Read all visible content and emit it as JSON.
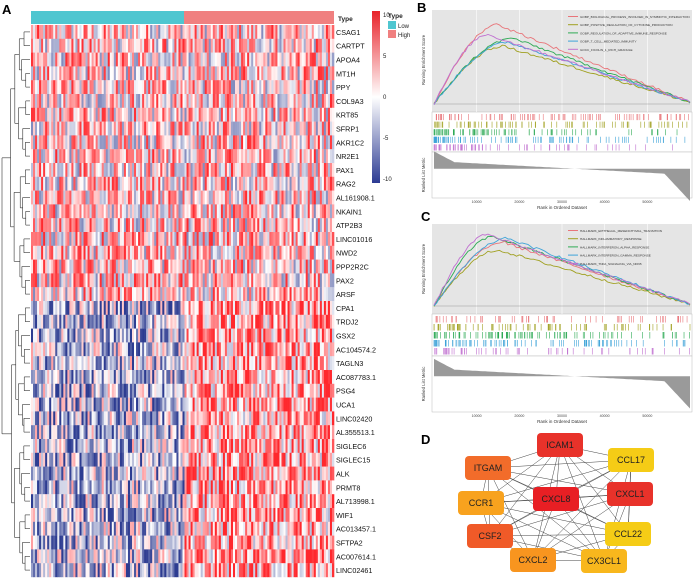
{
  "panels": {
    "a": "A",
    "b": "B",
    "c": "C",
    "d": "D"
  },
  "heatmap": {
    "genes": [
      "CSAG1",
      "CARTPT",
      "APOA4",
      "MT1H",
      "PPY",
      "COL9A3",
      "KRT85",
      "SFRP1",
      "AKR1C2",
      "NR2E1",
      "PAX1",
      "RAG2",
      "AL161908.1",
      "NKAIN1",
      "ATP2B3",
      "LINC01016",
      "NWD2",
      "PPP2R2C",
      "PAX2",
      "ARSF",
      "CPA1",
      "TRDJ2",
      "GSX2",
      "AC104574.2",
      "TAGLN3",
      "AC087783.1",
      "PSG4",
      "UCA1",
      "LINC02420",
      "AL355513.1",
      "SIGLEC6",
      "SIGLEC15",
      "ALK",
      "PRMT8",
      "AL713998.1",
      "WIF1",
      "AC013457.1",
      "SFTPA2",
      "AC007614.1",
      "LINC02461"
    ],
    "type_label": "Type",
    "legend_title": "Type",
    "legend_items": [
      {
        "label": "Low",
        "color": "#4fc6d0"
      },
      {
        "label": "High",
        "color": "#f08080"
      }
    ],
    "colorbar_ticks": [
      "10",
      "5",
      "0",
      "-5",
      "-10"
    ],
    "low_color": "#4fc6d0",
    "high_color": "#f08080"
  },
  "gsea_b": {
    "y_label": "Running Enrichment Score",
    "y2_label": "Ranked List Metric",
    "x_label": "Rank in Ordered Dataset",
    "x_ticks": [
      "10000",
      "20000",
      "30000",
      "40000",
      "50000"
    ],
    "series": [
      {
        "name": "GOBP_BIOLOGICAL_PROCESS_INVOLVED_IN_SYMBIOTIC_INTERACTION",
        "color": "#e8757a"
      },
      {
        "name": "GOBP_POSITIVE_REGULATION_OF_CYTOKINE_PRODUCTION",
        "color": "#a0a020"
      },
      {
        "name": "GOBP_REGULATION_OF_ADAPTIVE_IMMUNE_RESPONSE",
        "color": "#2eaa55"
      },
      {
        "name": "GOBP_T_CELL_MEDIATED_IMMUNITY",
        "color": "#3ea3d8"
      },
      {
        "name": "GOCC_FICOLIN_1_RICH_GRANULE",
        "color": "#c070d0"
      }
    ]
  },
  "gsea_c": {
    "y_label": "Running Enrichment Score",
    "y2_label": "Ranked List Metric",
    "x_label": "Rank in Ordered Dataset",
    "x_ticks": [
      "10000",
      "20000",
      "30000",
      "40000",
      "50000"
    ],
    "series": [
      {
        "name": "HALLMARK_EPITHELIAL_MESENCHYMAL_TRANSITION",
        "color": "#e8757a"
      },
      {
        "name": "HALLMARK_INFLAMMATORY_RESPONSE",
        "color": "#a0a020"
      },
      {
        "name": "HALLMARK_INTERFERON_ALPHA_RESPONSE",
        "color": "#2eaa55"
      },
      {
        "name": "HALLMARK_INTERFERON_GAMMA_RESPONSE",
        "color": "#3ea3d8"
      },
      {
        "name": "HALLMARK_TNFA_SIGNALING_VIA_NFKB",
        "color": "#c070d0"
      }
    ]
  },
  "network": {
    "nodes": [
      {
        "id": "ICAM1",
        "color": "#e8322a"
      },
      {
        "id": "CCL17",
        "color": "#f5cc16"
      },
      {
        "id": "ITGAM",
        "color": "#f26c2a"
      },
      {
        "id": "CXCL1",
        "color": "#e8322a"
      },
      {
        "id": "CCR1",
        "color": "#f8a21e"
      },
      {
        "id": "CXCL8",
        "color": "#e81f24"
      },
      {
        "id": "CSF2",
        "color": "#f05a28"
      },
      {
        "id": "CCL22",
        "color": "#f5cc16"
      },
      {
        "id": "CXCL2",
        "color": "#f8951f"
      },
      {
        "id": "CX3CL1",
        "color": "#f8b71d"
      }
    ]
  }
}
